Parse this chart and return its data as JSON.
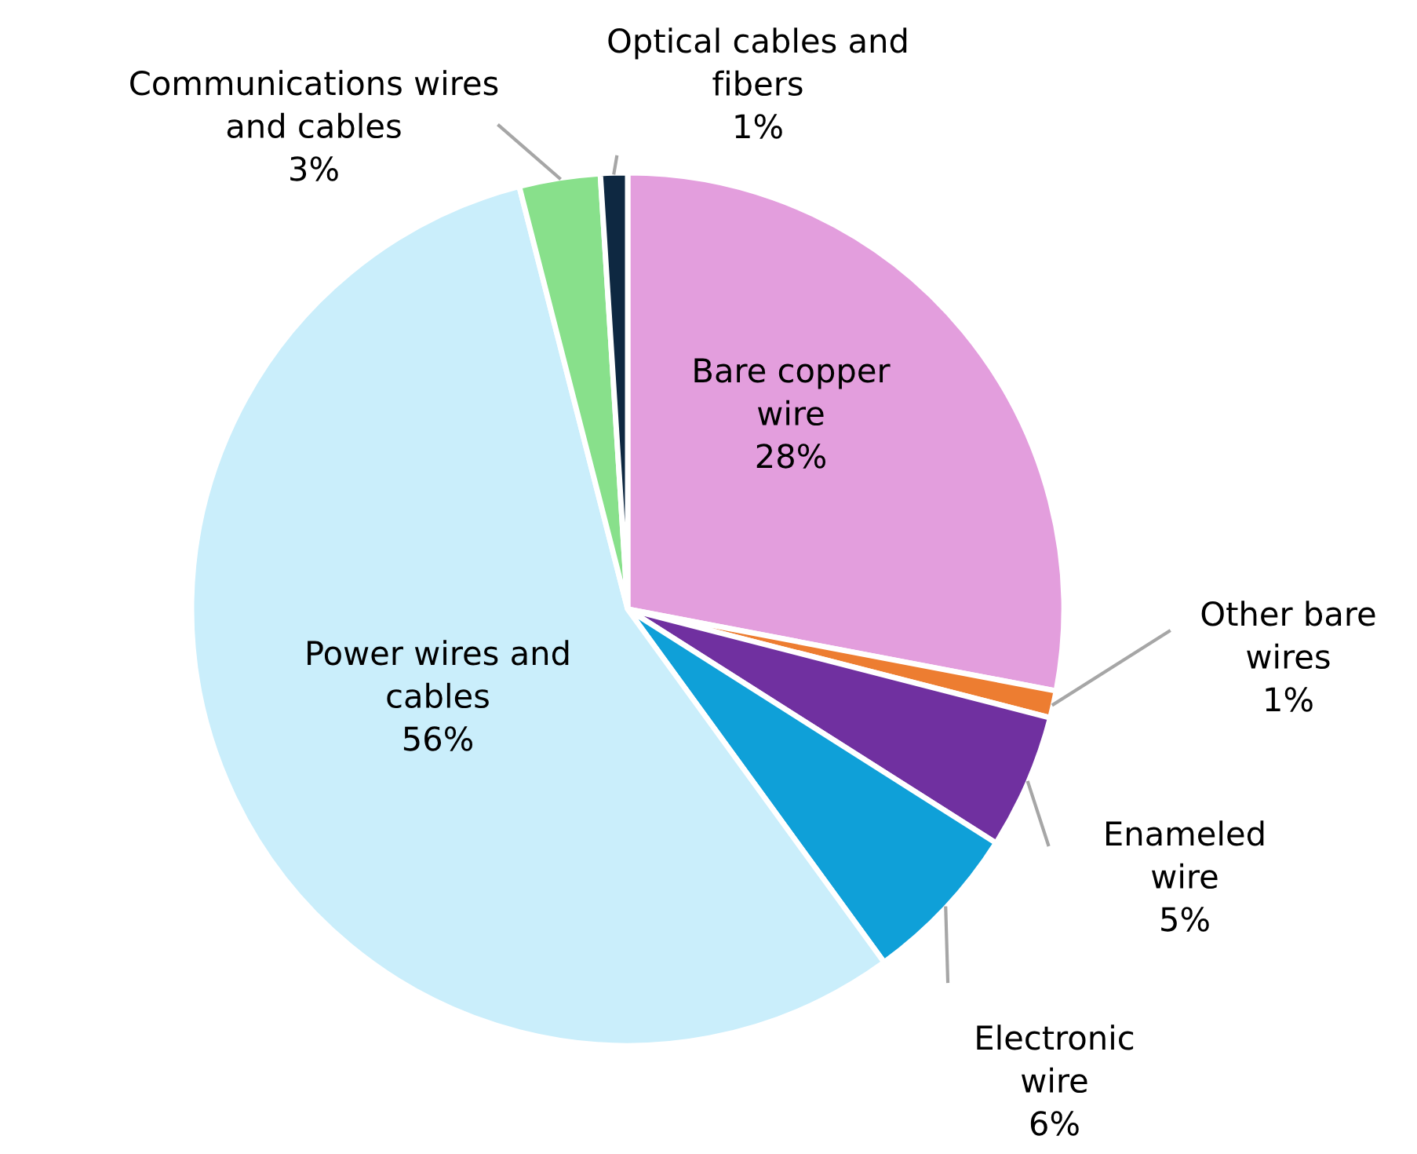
{
  "chart_data": {
    "type": "pie",
    "categories": [
      "Bare copper wire",
      "Other bare wires",
      "Enameled wire",
      "Electronic wire",
      "Power wires and cables",
      "Communications wires and cables",
      "Optical cables and fibers"
    ],
    "values": [
      28,
      1,
      5,
      6,
      56,
      3,
      1
    ],
    "value_labels": [
      "28%",
      "1%",
      "5%",
      "6%",
      "56%",
      "3%",
      "1%"
    ],
    "colors": [
      "#e39edd",
      "#ed7d31",
      "#7030a0",
      "#0fa0d8",
      "#caeefb",
      "#88e08b",
      "#0e2841"
    ]
  }
}
